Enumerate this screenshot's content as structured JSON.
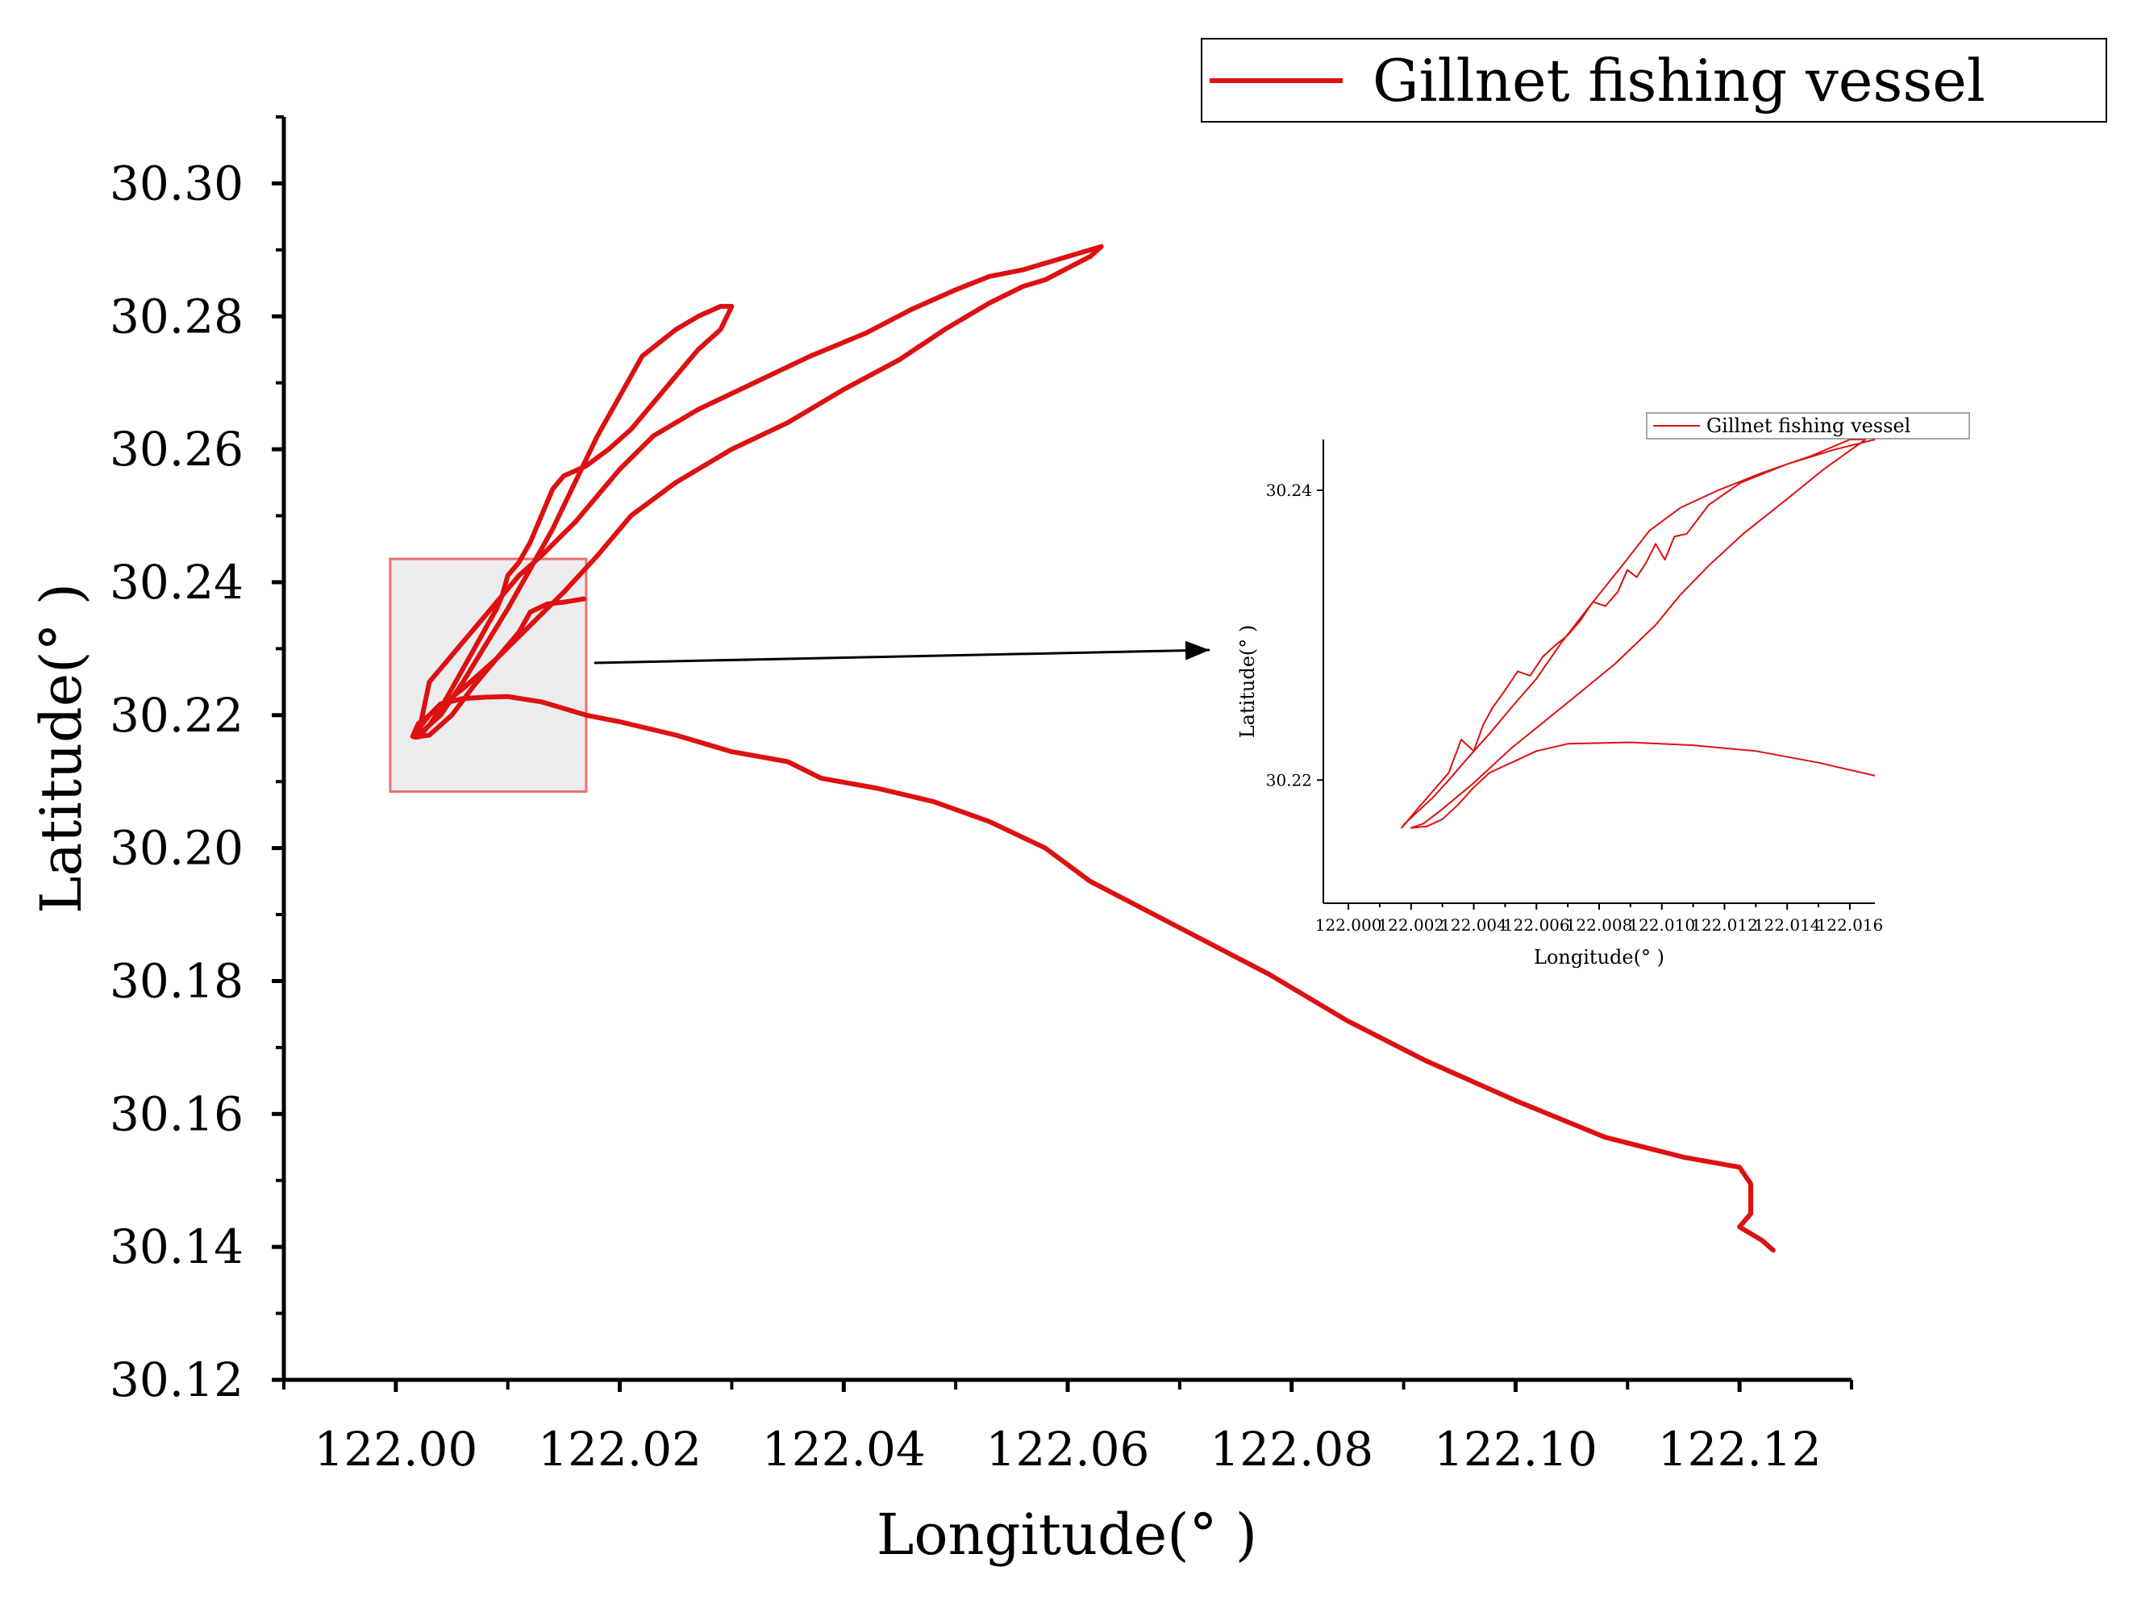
{
  "colors": {
    "track": "#dd1111",
    "track_faded": "#e06060",
    "zoom_box_fill": "#ececec",
    "zoom_box_stroke": "#e87070",
    "axis": "#000000"
  },
  "chart_data": [
    {
      "type": "line",
      "xlabel": "Longitude(° )",
      "ylabel": "Latitude(° )",
      "xlim": [
        121.99,
        122.13
      ],
      "ylim": [
        30.12,
        30.31
      ],
      "xticks": [
        122.0,
        122.02,
        122.04,
        122.06,
        122.08,
        122.1,
        122.12
      ],
      "xtick_labels": [
        "122.00",
        "122.02",
        "122.04",
        "122.06",
        "122.08",
        "122.10",
        "122.12"
      ],
      "yticks": [
        30.12,
        30.14,
        30.16,
        30.18,
        30.2,
        30.22,
        30.24,
        30.26,
        30.28,
        30.3
      ],
      "ytick_labels": [
        "30.12",
        "30.14",
        "30.16",
        "30.18",
        "30.20",
        "30.22",
        "30.24",
        "30.26",
        "30.28",
        "30.30"
      ],
      "legend": {
        "entries": [
          "Gillnet fishing vessel"
        ],
        "placement": "top-right"
      },
      "grid": false,
      "zoom_region": {
        "x": [
          121.9995,
          122.017
        ],
        "y": [
          30.2085,
          30.2435
        ]
      },
      "series": [
        {
          "name": "Gillnet fishing vessel",
          "x": [
            122.123,
            122.122,
            122.12,
            122.121,
            122.121,
            122.12,
            122.115,
            122.108,
            122.1,
            122.092,
            122.085,
            122.078,
            122.07,
            122.062,
            122.058,
            122.053,
            122.048,
            122.043,
            122.038,
            122.035,
            122.03,
            122.025,
            122.02,
            122.017,
            122.013,
            122.01,
            122.008,
            122.006,
            122.004,
            122.003,
            122.002,
            122.0015,
            122.003,
            122.006,
            122.009,
            122.012,
            122.015,
            122.018,
            122.021,
            122.025,
            122.03,
            122.035,
            122.04,
            122.045,
            122.049,
            122.053,
            122.056,
            122.058,
            122.062,
            122.063,
            122.06,
            122.056,
            122.053,
            122.05,
            122.046,
            122.042,
            122.037,
            122.032,
            122.027,
            122.023,
            122.02,
            122.018,
            122.016,
            122.013,
            122.011,
            122.009,
            122.007,
            122.005,
            122.003,
            122.002,
            122.004,
            122.006,
            122.008,
            122.01,
            122.012,
            122.014,
            122.016,
            122.018,
            122.02,
            122.022,
            122.025,
            122.027,
            122.029,
            122.03,
            122.029,
            122.027,
            122.025,
            122.023,
            122.021,
            122.019,
            122.017,
            122.015,
            122.014,
            122.013,
            122.012,
            122.011,
            122.01,
            122.0095,
            122.009,
            122.008,
            122.007,
            122.006,
            122.005,
            122.004,
            122.003,
            122.002,
            122.0017,
            122.003,
            122.005,
            122.007,
            122.009,
            122.011,
            122.012,
            122.0135,
            122.015,
            122.0168
          ],
          "y": [
            30.1395,
            30.141,
            30.143,
            30.145,
            30.1495,
            30.152,
            30.1535,
            30.1565,
            30.162,
            30.168,
            30.174,
            30.181,
            30.188,
            30.195,
            30.2,
            30.204,
            30.207,
            30.209,
            30.2105,
            30.213,
            30.2145,
            30.217,
            30.219,
            30.22,
            30.222,
            30.2228,
            30.2227,
            30.2225,
            30.2217,
            30.22,
            30.2187,
            30.2168,
            30.22,
            30.224,
            30.2285,
            30.2335,
            30.2385,
            30.244,
            30.25,
            30.255,
            30.26,
            30.264,
            30.269,
            30.2735,
            30.278,
            30.282,
            30.2845,
            30.2855,
            30.289,
            30.2905,
            30.289,
            30.287,
            30.286,
            30.284,
            30.281,
            30.2775,
            30.274,
            30.27,
            30.266,
            30.262,
            30.257,
            30.253,
            30.249,
            30.244,
            30.241,
            30.237,
            30.233,
            30.229,
            30.225,
            30.217,
            30.22,
            30.225,
            30.2305,
            30.236,
            30.242,
            30.248,
            30.255,
            30.262,
            30.268,
            30.274,
            30.278,
            30.28,
            30.2815,
            30.2815,
            30.278,
            30.275,
            30.271,
            30.267,
            30.263,
            30.26,
            30.2575,
            30.256,
            30.254,
            30.25,
            30.246,
            30.243,
            30.241,
            30.238,
            30.236,
            30.233,
            30.23,
            30.227,
            30.224,
            30.221,
            30.2185,
            30.2167,
            30.2167,
            30.217,
            30.22,
            30.2245,
            30.2285,
            30.2325,
            30.2355,
            30.2367,
            30.237,
            30.2375
          ]
        }
      ]
    },
    {
      "type": "line",
      "xlabel": "Longitude(° )",
      "ylabel": "Latitude(° )",
      "xlim": [
        121.9992,
        122.0168
      ],
      "ylim": [
        30.2115,
        30.2435
      ],
      "xticks": [
        122.0,
        122.002,
        122.004,
        122.006,
        122.008,
        122.01,
        122.012,
        122.014,
        122.016
      ],
      "xtick_labels": [
        "122.000",
        "122.002",
        "122.004",
        "122.006",
        "122.008",
        "122.010",
        "122.012",
        "122.014",
        "122.016"
      ],
      "yticks": [
        30.22,
        30.24
      ],
      "ytick_labels": [
        "30.22",
        "30.24"
      ],
      "legend": {
        "entries": [
          "Gillnet fishing vessel"
        ],
        "placement": "top-right"
      },
      "grid": false,
      "series": [
        {
          "name": "Gillnet fishing vessel",
          "x": [
            122.0168,
            122.015,
            122.013,
            122.011,
            122.009,
            122.007,
            122.006,
            122.005,
            122.0045,
            122.004,
            122.0035,
            122.003,
            122.0025,
            122.002,
            122.0024,
            122.003,
            122.004,
            122.0052,
            122.0068,
            122.0085,
            122.0098,
            122.0106,
            122.0115,
            122.0126,
            122.014,
            122.0152,
            122.0165,
            122.016,
            122.0148,
            122.0132,
            122.0118,
            122.0106,
            122.0096,
            122.0087,
            122.0077,
            122.0068,
            122.006,
            122.0052,
            122.0045,
            122.0038,
            122.0032,
            122.0027,
            122.0023,
            122.002,
            122.0018,
            122.0017,
            122.0022,
            122.0028,
            122.0032,
            122.0036,
            122.004,
            122.0043,
            122.0046,
            122.005,
            122.0054,
            122.0058,
            122.0062,
            122.0066,
            122.007,
            122.0074,
            122.0078,
            122.0082,
            122.0086,
            122.0089,
            122.0092,
            122.0095,
            122.0098,
            122.0101,
            122.0104,
            122.0108,
            122.0115,
            122.0125,
            122.014,
            122.0155,
            122.0168
          ],
          "y": [
            30.2203,
            30.2212,
            30.222,
            30.2224,
            30.2226,
            30.2225,
            30.222,
            30.221,
            30.2205,
            30.2195,
            30.2183,
            30.2173,
            30.2168,
            30.2167,
            30.217,
            30.218,
            30.2198,
            30.2222,
            30.225,
            30.228,
            30.2307,
            30.2328,
            30.2348,
            30.237,
            30.2394,
            30.2415,
            30.2435,
            30.2435,
            30.2424,
            30.2412,
            30.24,
            30.2388,
            30.2372,
            30.2347,
            30.232,
            30.2295,
            30.227,
            30.225,
            30.2232,
            30.2215,
            30.22,
            30.2188,
            30.218,
            30.2174,
            30.217,
            30.2167,
            30.218,
            30.2195,
            30.2205,
            30.2228,
            30.222,
            30.2238,
            30.225,
            30.2262,
            30.2275,
            30.2272,
            30.2285,
            30.2293,
            30.23,
            30.231,
            30.2323,
            30.232,
            30.233,
            30.2345,
            30.234,
            30.235,
            30.2363,
            30.2352,
            30.2368,
            30.237,
            30.239,
            30.2405,
            30.2418,
            30.2428,
            30.2435
          ]
        }
      ]
    }
  ]
}
